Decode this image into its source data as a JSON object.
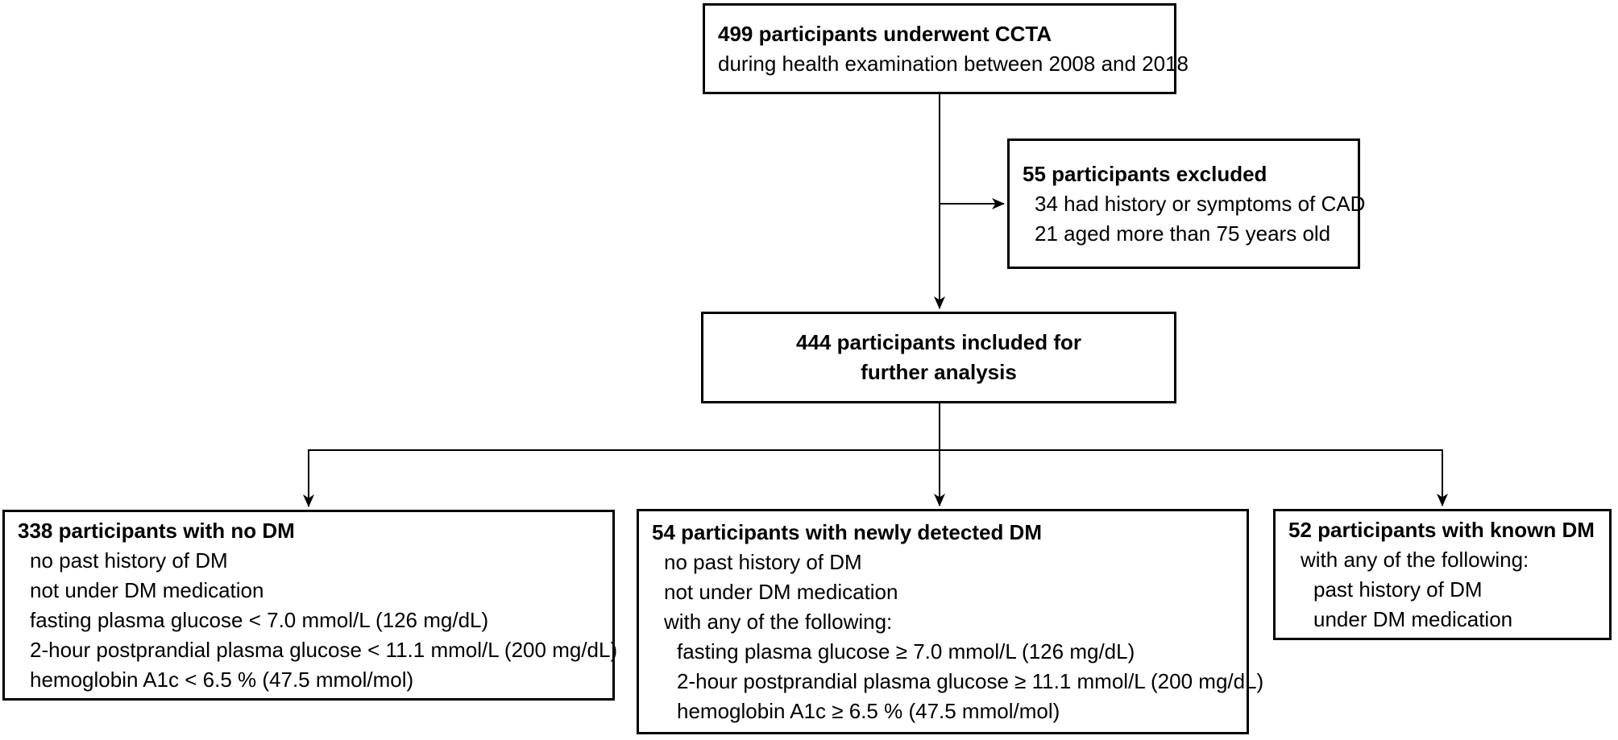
{
  "colors": {
    "background": "#ffffff",
    "box_border": "#000000",
    "text": "#000000",
    "connector": "#000000"
  },
  "nodes": {
    "cta": {
      "title": "499 participants underwent CCTA",
      "lines": [
        {
          "text": "during health examination between 2008 and 2018",
          "indent": 0
        }
      ]
    },
    "excluded": {
      "title": "55 participants excluded",
      "lines": [
        {
          "text": "34 had history or symptoms of CAD",
          "indent": 1
        },
        {
          "text": "21 aged more than 75 years old",
          "indent": 1
        }
      ]
    },
    "included": {
      "title_line1": "444 participants included for",
      "title_line2": "further analysis"
    },
    "no_dm": {
      "title": "338 participants with no DM",
      "lines": [
        {
          "text": "no past history of DM",
          "indent": 1
        },
        {
          "text": "not under DM medication",
          "indent": 1
        },
        {
          "text": "fasting plasma glucose < 7.0 mmol/L (126 mg/dL)",
          "indent": 1
        },
        {
          "text": "2-hour postprandial plasma glucose < 11.1 mmol/L (200 mg/dL)",
          "indent": 1
        },
        {
          "text": "hemoglobin A1c < 6.5 % (47.5 mmol/mol)",
          "indent": 1
        }
      ]
    },
    "new_dm": {
      "title": "54 participants with newly detected DM",
      "lines": [
        {
          "text": "no past history of DM",
          "indent": 1
        },
        {
          "text": "not under DM medication",
          "indent": 1
        },
        {
          "text": "with any of the following:",
          "indent": 1
        },
        {
          "text": "fasting plasma glucose ≥ 7.0 mmol/L (126 mg/dL)",
          "indent": 2
        },
        {
          "text": "2-hour postprandial plasma glucose ≥ 11.1 mmol/L (200 mg/dL)",
          "indent": 2
        },
        {
          "text": "hemoglobin A1c ≥ 6.5 % (47.5 mmol/mol)",
          "indent": 2
        }
      ]
    },
    "known_dm": {
      "title": "52 participants with known DM",
      "lines": [
        {
          "text": "with any of the following:",
          "indent": 1
        },
        {
          "text": "past history of DM",
          "indent": 2
        },
        {
          "text": "under DM medication",
          "indent": 2
        }
      ]
    }
  }
}
